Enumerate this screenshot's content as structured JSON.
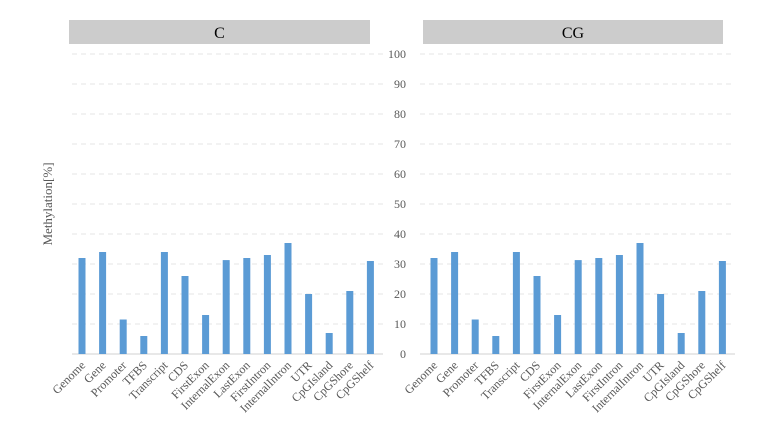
{
  "chart_data": [
    {
      "type": "bar",
      "title": "C",
      "ylabel": "Methylation[%]",
      "ylim": [
        0,
        100
      ],
      "yticks": [
        0,
        10,
        20,
        30,
        40,
        50,
        60,
        70,
        80,
        90,
        100
      ],
      "grid": true,
      "color": "#5b9bd5",
      "categories": [
        "Genome",
        "Gene",
        "Promoter",
        "TFBS",
        "Transcript",
        "CDS",
        "FirstExon",
        "InternalExon",
        "LastExon",
        "FirstIntron",
        "InternalIntron",
        "UTR",
        "CpGIsland",
        "CpGShore",
        "CpGShelf"
      ],
      "values": [
        32,
        34,
        11.5,
        6,
        34,
        26,
        13,
        31.3,
        32,
        33,
        37,
        20,
        7,
        21,
        31
      ]
    },
    {
      "type": "bar",
      "title": "CG",
      "ylim": [
        0,
        100
      ],
      "yticks": [
        0,
        10,
        20,
        30,
        40,
        50,
        60,
        70,
        80,
        90,
        100
      ],
      "grid": true,
      "color": "#5b9bd5",
      "categories": [
        "Genome",
        "Gene",
        "Promoter",
        "TFBS",
        "Transcript",
        "CDS",
        "FirstExon",
        "InternalExon",
        "LastExon",
        "FirstIntron",
        "InternalIntron",
        "UTR",
        "CpGIsland",
        "CpGShore",
        "CpGShelf"
      ],
      "values": [
        32,
        34,
        11.5,
        6,
        34,
        26,
        13,
        31.3,
        32,
        33,
        37,
        20,
        7,
        21,
        31
      ]
    }
  ]
}
